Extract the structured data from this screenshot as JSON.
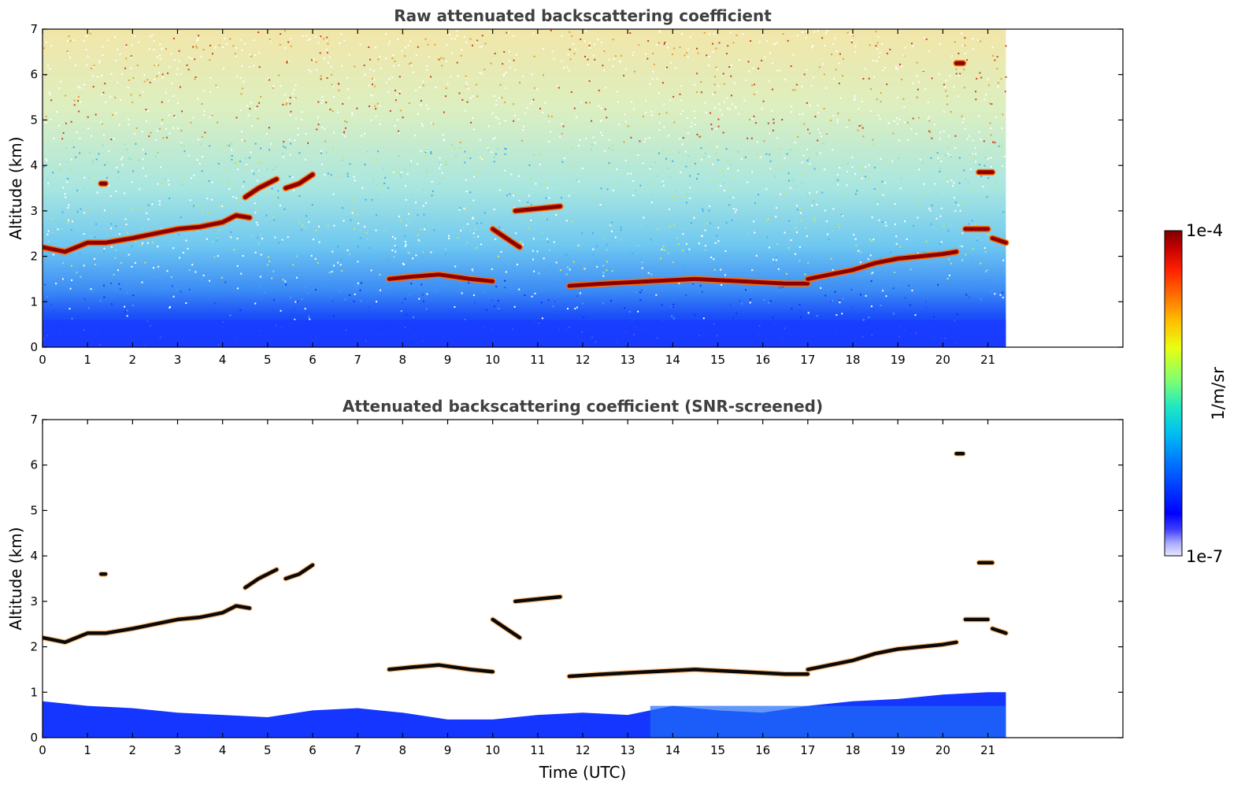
{
  "chart_data": [
    {
      "type": "heatmap",
      "title": "Raw attenuated backscattering coefficient",
      "xlabel": "",
      "ylabel": "Altitude (km)",
      "xlim": [
        0,
        24
      ],
      "ylim": [
        0,
        7
      ],
      "xticks": [
        0,
        1,
        2,
        3,
        4,
        5,
        6,
        7,
        8,
        9,
        10,
        11,
        12,
        13,
        14,
        15,
        16,
        17,
        18,
        19,
        20,
        21
      ],
      "yticks": [
        0,
        1,
        2,
        3,
        4,
        5,
        6,
        7
      ],
      "data_end_time": 21.4,
      "cloud_layers": [
        {
          "x": [
            0.0,
            0.5,
            1.0,
            1.4,
            2.0,
            2.5,
            3.0,
            3.5,
            4.0,
            4.3,
            4.6
          ],
          "y": [
            2.2,
            2.1,
            2.3,
            2.3,
            2.4,
            2.5,
            2.6,
            2.65,
            2.75,
            2.9,
            2.85
          ]
        },
        {
          "x": [
            1.3,
            1.4
          ],
          "y": [
            3.6,
            3.6
          ]
        },
        {
          "x": [
            4.5,
            4.8,
            5.2
          ],
          "y": [
            3.3,
            3.5,
            3.7
          ]
        },
        {
          "x": [
            5.4,
            5.7,
            6.0
          ],
          "y": [
            3.5,
            3.6,
            3.8
          ]
        },
        {
          "x": [
            7.7,
            8.2,
            8.8,
            9.5,
            10.0
          ],
          "y": [
            1.5,
            1.55,
            1.6,
            1.5,
            1.45
          ]
        },
        {
          "x": [
            10.0,
            10.3,
            10.6
          ],
          "y": [
            2.6,
            2.4,
            2.2
          ]
        },
        {
          "x": [
            10.5,
            11.0,
            11.5
          ],
          "y": [
            3.0,
            3.05,
            3.1
          ]
        },
        {
          "x": [
            11.7,
            12.5,
            13.5,
            14.5,
            15.5,
            16.5,
            17.0
          ],
          "y": [
            1.35,
            1.4,
            1.45,
            1.5,
            1.45,
            1.4,
            1.4
          ]
        },
        {
          "x": [
            17.0,
            17.5,
            18.0,
            18.5,
            19.0,
            19.5,
            20.0,
            20.3
          ],
          "y": [
            1.5,
            1.6,
            1.7,
            1.85,
            1.95,
            2.0,
            2.05,
            2.1
          ]
        },
        {
          "x": [
            20.5,
            21.0
          ],
          "y": [
            2.6,
            2.6
          ]
        },
        {
          "x": [
            21.1,
            21.4
          ],
          "y": [
            2.4,
            2.3
          ]
        },
        {
          "x": [
            20.8,
            21.1
          ],
          "y": [
            3.85,
            3.85
          ]
        },
        {
          "x": [
            20.3,
            20.45
          ],
          "y": [
            6.25,
            6.25
          ]
        }
      ]
    },
    {
      "type": "heatmap",
      "title": "Attenuated backscattering coefficient (SNR-screened)",
      "xlabel": "Time (UTC)",
      "ylabel": "Altitude (km)",
      "xlim": [
        0,
        24
      ],
      "ylim": [
        0,
        7
      ],
      "xticks": [
        0,
        1,
        2,
        3,
        4,
        5,
        6,
        7,
        8,
        9,
        10,
        11,
        12,
        13,
        14,
        15,
        16,
        17,
        18,
        19,
        20,
        21
      ],
      "yticks": [
        0,
        1,
        2,
        3,
        4,
        5,
        6,
        7
      ],
      "data_end_time": 21.4,
      "boundary_layer_top": {
        "x": [
          0,
          1,
          2,
          3,
          4,
          5,
          6,
          7,
          8,
          9,
          10,
          11,
          12,
          13,
          14,
          15,
          16,
          17,
          18,
          19,
          20,
          21,
          21.4
        ],
        "y": [
          0.8,
          0.7,
          0.65,
          0.55,
          0.5,
          0.45,
          0.6,
          0.65,
          0.55,
          0.4,
          0.4,
          0.5,
          0.55,
          0.5,
          0.7,
          0.6,
          0.55,
          0.7,
          0.8,
          0.85,
          0.95,
          1.0,
          1.0
        ]
      }
    }
  ],
  "colorbar": {
    "label": "1/m/sr",
    "max_label": "1e-4",
    "min_label": "1e-7",
    "colormap": [
      "#1a0000",
      "#7f0000",
      "#c00000",
      "#ff2000",
      "#ff7000",
      "#ffc000",
      "#ffff00",
      "#a0ff40",
      "#40ffa0",
      "#00e0e0",
      "#00a0ff",
      "#0050ff",
      "#0000ff",
      "#5050ff",
      "#a8a8ff",
      "#e8e8ff"
    ]
  }
}
